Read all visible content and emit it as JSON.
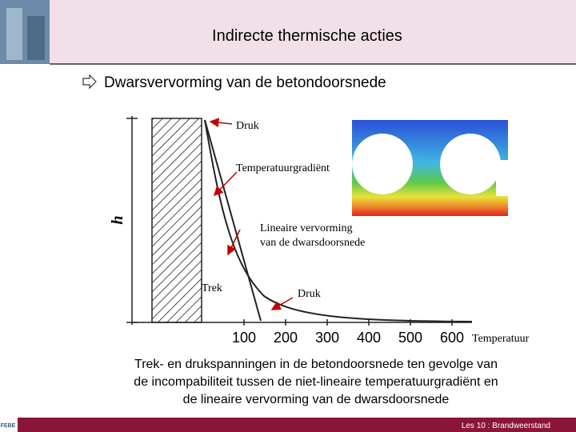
{
  "header": {
    "title": "Indirecte thermische acties"
  },
  "bullet": "Dwarsvervorming van de betondoorsnede",
  "figure": {
    "axis_label_v": "h",
    "labels": [
      "Druk",
      "Temperatuurgradiënt",
      "Lineaire vervorming",
      "van de dwarsdoorsnede",
      "Trek",
      "Druk"
    ],
    "ticks": [
      100,
      200,
      300,
      400,
      500,
      600
    ],
    "axis_label_x": "Temperatuur"
  },
  "caption": [
    "Trek- en drukspanningen in de betondoorsnede ten gevolge van",
    "de incompabiliteit tussen de niet-lineaire temperatuurgradiënt en",
    "de lineaire vervorming van de dwarsdoorsnede"
  ],
  "footer": {
    "logo": "FEBE",
    "text": "Les 10 : Brandweerstand"
  }
}
